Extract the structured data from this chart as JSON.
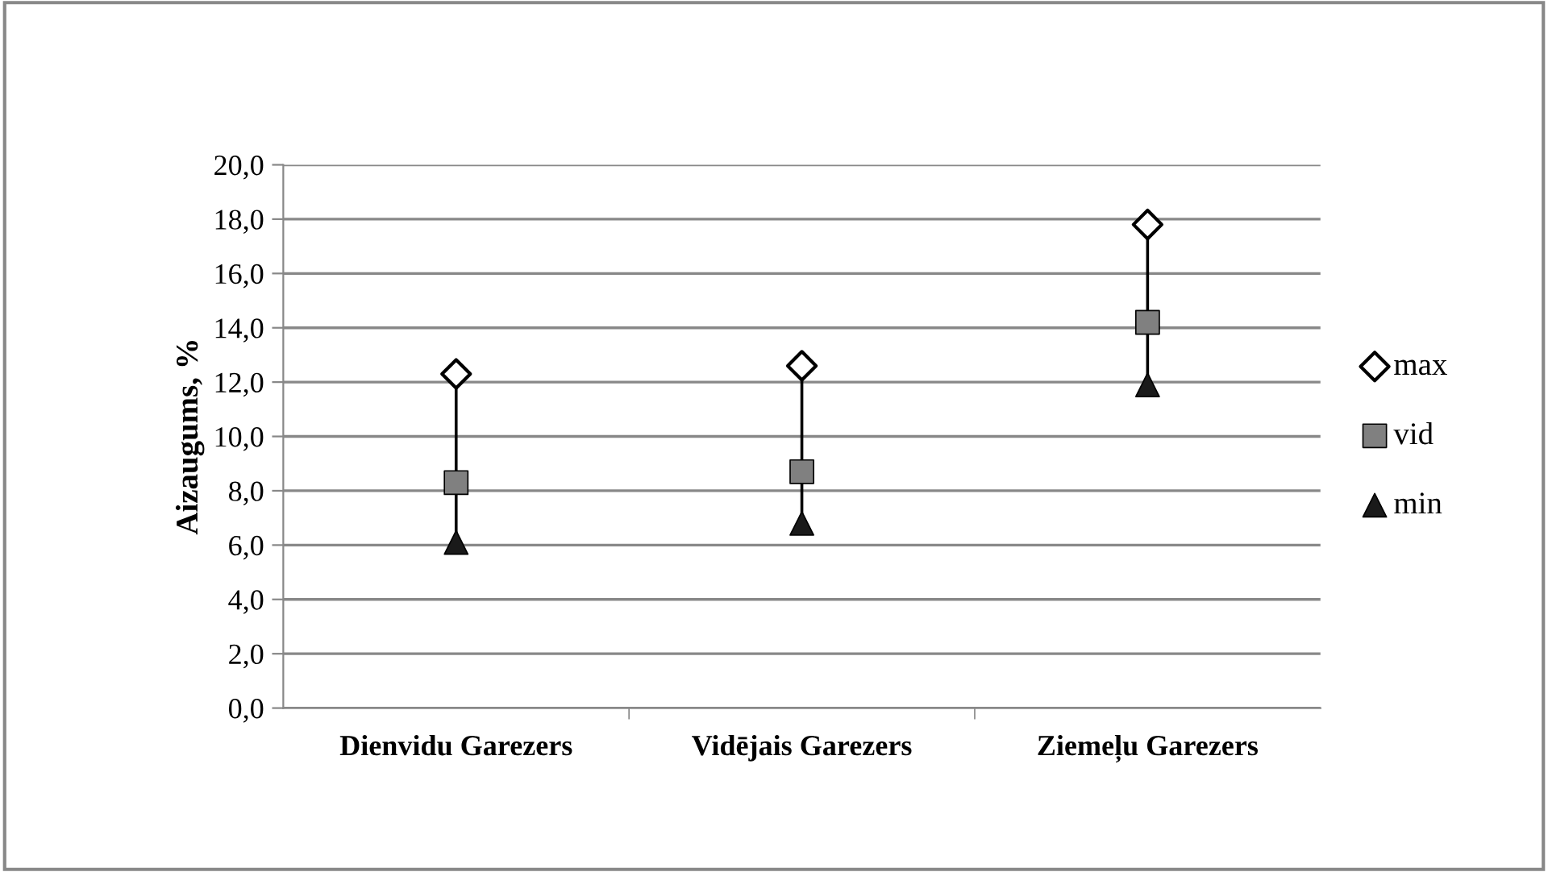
{
  "chart_data": {
    "type": "scatter",
    "ylabel": "Aizaugums, %",
    "categories": [
      "Dienvidu Garezers",
      "Vidējais Garezers",
      "Ziemeļu Garezers"
    ],
    "series": [
      {
        "name": "max",
        "color": "#ffffff",
        "marker": "diamond",
        "values": [
          12.3,
          12.6,
          17.8
        ]
      },
      {
        "name": "vid",
        "color": "#808080",
        "marker": "square",
        "values": [
          8.3,
          8.7,
          14.2
        ]
      },
      {
        "name": "min",
        "color": "#1a1a1a",
        "marker": "triangle",
        "values": [
          6.1,
          6.8,
          11.9
        ]
      }
    ],
    "ylim": [
      0,
      20
    ],
    "yticks": [
      {
        "value": 0,
        "label": "0,0"
      },
      {
        "value": 2,
        "label": "2,0"
      },
      {
        "value": 4,
        "label": "4,0"
      },
      {
        "value": 6,
        "label": "6,0"
      },
      {
        "value": 8,
        "label": "8,0"
      },
      {
        "value": 10,
        "label": "10,0"
      },
      {
        "value": 12,
        "label": "12,0"
      },
      {
        "value": 14,
        "label": "14,0"
      },
      {
        "value": 16,
        "label": "16,0"
      },
      {
        "value": 18,
        "label": "18,0"
      },
      {
        "value": 20,
        "label": "20,0"
      }
    ],
    "grid": "y",
    "legend": "right"
  }
}
